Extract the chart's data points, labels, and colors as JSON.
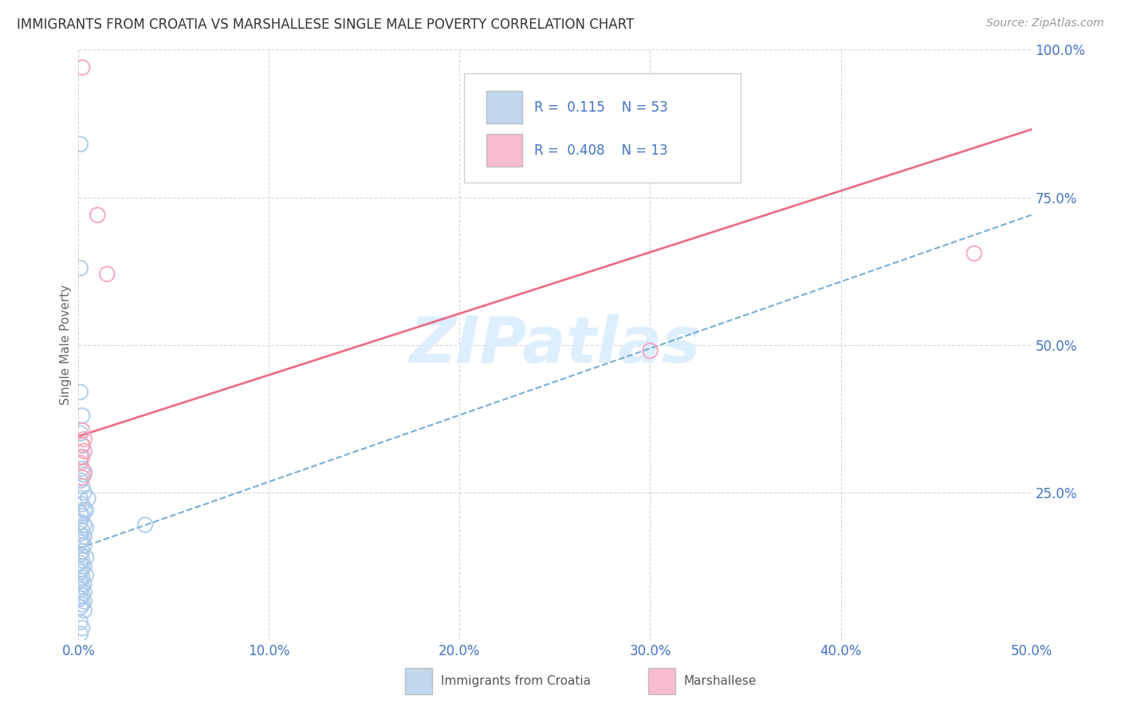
{
  "title": "IMMIGRANTS FROM CROATIA VS MARSHALLESE SINGLE MALE POVERTY CORRELATION CHART",
  "source": "Source: ZipAtlas.com",
  "ylabel": "Single Male Poverty",
  "xlim": [
    0.0,
    0.5
  ],
  "ylim": [
    0.0,
    1.0
  ],
  "xticks": [
    0.0,
    0.1,
    0.2,
    0.3,
    0.4,
    0.5
  ],
  "yticks": [
    0.0,
    0.25,
    0.5,
    0.75,
    1.0
  ],
  "xtick_labels": [
    "0.0%",
    "10.0%",
    "20.0%",
    "30.0%",
    "40.0%",
    "50.0%"
  ],
  "ytick_right_labels": [
    "",
    "25.0%",
    "50.0%",
    "75.0%",
    "100.0%"
  ],
  "blue_color": "#a8c8e8",
  "pink_color": "#f4a0b8",
  "trend_blue_color": "#5599cc",
  "trend_pink_color": "#e8607a",
  "watermark_text": "ZIPatlas",
  "watermark_color": "#ddeeff",
  "legend_r1": "R =  0.115",
  "legend_n1": "N = 53",
  "legend_r2": "R =  0.408",
  "legend_n2": "N = 13",
  "blue_scatter": [
    [
      0.001,
      0.84
    ],
    [
      0.001,
      0.63
    ],
    [
      0.001,
      0.42
    ],
    [
      0.002,
      0.38
    ],
    [
      0.001,
      0.35
    ],
    [
      0.002,
      0.33
    ],
    [
      0.001,
      0.31
    ],
    [
      0.002,
      0.29
    ],
    [
      0.003,
      0.28
    ],
    [
      0.001,
      0.27
    ],
    [
      0.002,
      0.26
    ],
    [
      0.003,
      0.25
    ],
    [
      0.001,
      0.24
    ],
    [
      0.002,
      0.23
    ],
    [
      0.003,
      0.22
    ],
    [
      0.001,
      0.215
    ],
    [
      0.002,
      0.21
    ],
    [
      0.001,
      0.2
    ],
    [
      0.003,
      0.195
    ],
    [
      0.004,
      0.19
    ],
    [
      0.002,
      0.185
    ],
    [
      0.001,
      0.18
    ],
    [
      0.003,
      0.175
    ],
    [
      0.002,
      0.17
    ],
    [
      0.001,
      0.165
    ],
    [
      0.003,
      0.16
    ],
    [
      0.002,
      0.15
    ],
    [
      0.001,
      0.145
    ],
    [
      0.004,
      0.14
    ],
    [
      0.002,
      0.135
    ],
    [
      0.001,
      0.13
    ],
    [
      0.003,
      0.125
    ],
    [
      0.002,
      0.12
    ],
    [
      0.001,
      0.115
    ],
    [
      0.004,
      0.11
    ],
    [
      0.002,
      0.105
    ],
    [
      0.001,
      0.1
    ],
    [
      0.003,
      0.095
    ],
    [
      0.002,
      0.09
    ],
    [
      0.001,
      0.085
    ],
    [
      0.003,
      0.08
    ],
    [
      0.002,
      0.075
    ],
    [
      0.001,
      0.07
    ],
    [
      0.003,
      0.065
    ],
    [
      0.002,
      0.06
    ],
    [
      0.001,
      0.055
    ],
    [
      0.003,
      0.05
    ],
    [
      0.001,
      0.03
    ],
    [
      0.002,
      0.02
    ],
    [
      0.001,
      0.01
    ],
    [
      0.004,
      0.22
    ],
    [
      0.005,
      0.24
    ],
    [
      0.035,
      0.195
    ]
  ],
  "pink_scatter": [
    [
      0.002,
      0.97
    ],
    [
      0.01,
      0.72
    ],
    [
      0.015,
      0.62
    ],
    [
      0.002,
      0.355
    ],
    [
      0.003,
      0.34
    ],
    [
      0.002,
      0.33
    ],
    [
      0.003,
      0.32
    ],
    [
      0.002,
      0.31
    ],
    [
      0.001,
      0.3
    ],
    [
      0.003,
      0.285
    ],
    [
      0.002,
      0.275
    ],
    [
      0.47,
      0.655
    ],
    [
      0.3,
      0.49
    ]
  ],
  "pink_trend_x0": 0.0,
  "pink_trend_y0": 0.345,
  "pink_trend_x1": 0.5,
  "pink_trend_y1": 0.865,
  "blue_trend_x0": 0.0,
  "blue_trend_y0": 0.155,
  "blue_trend_x1": 0.5,
  "blue_trend_y1": 0.72
}
